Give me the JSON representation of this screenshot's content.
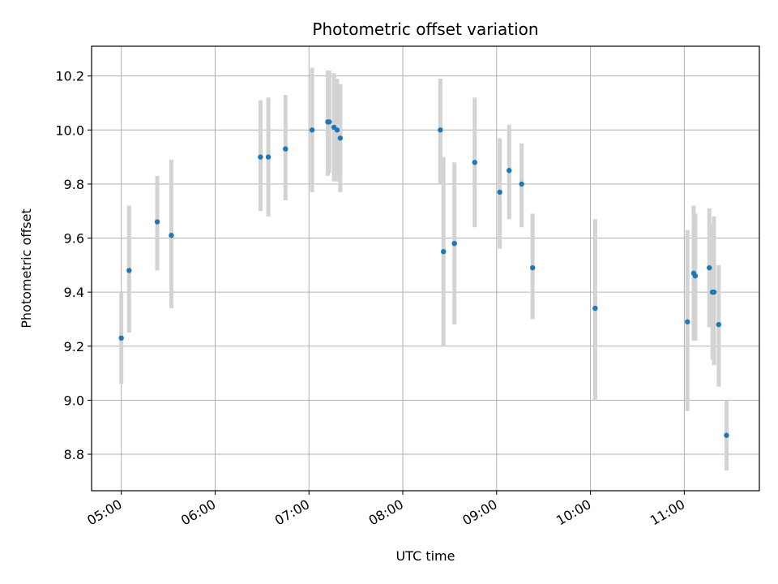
{
  "chart_data": {
    "type": "scatter",
    "title": "Photometric offset variation",
    "xlabel": "UTC time",
    "ylabel": "Photometric offset",
    "x_ticks": [
      "05:00",
      "06:00",
      "07:00",
      "08:00",
      "09:00",
      "10:00",
      "11:00"
    ],
    "y_ticks": [
      "8.8",
      "9.0",
      "9.2",
      "9.4",
      "9.6",
      "9.8",
      "10.0",
      "10.2"
    ],
    "xlim": [
      "04:41",
      "11:48"
    ],
    "ylim": [
      8.665,
      10.31
    ],
    "grid": true,
    "colors": {
      "point": "#1f77b4",
      "errorbar": "#d3d3d3",
      "grid": "#b0b0b0"
    },
    "series": [
      {
        "points": [
          {
            "x": "05:00",
            "y": 9.23,
            "ylow": 9.06,
            "yhigh": 9.4
          },
          {
            "x": "05:05",
            "y": 9.48,
            "ylow": 9.25,
            "yhigh": 9.72
          },
          {
            "x": "05:23",
            "y": 9.66,
            "ylow": 9.48,
            "yhigh": 9.83
          },
          {
            "x": "05:32",
            "y": 9.61,
            "ylow": 9.34,
            "yhigh": 9.89
          },
          {
            "x": "06:29",
            "y": 9.9,
            "ylow": 9.7,
            "yhigh": 10.11
          },
          {
            "x": "06:34",
            "y": 9.9,
            "ylow": 9.68,
            "yhigh": 10.12
          },
          {
            "x": "06:45",
            "y": 9.93,
            "ylow": 9.74,
            "yhigh": 10.13
          },
          {
            "x": "07:02",
            "y": 10.0,
            "ylow": 9.77,
            "yhigh": 10.23
          },
          {
            "x": "07:12",
            "y": 10.03,
            "ylow": 9.83,
            "yhigh": 10.22
          },
          {
            "x": "07:13",
            "y": 10.03,
            "ylow": 9.84,
            "yhigh": 10.22
          },
          {
            "x": "07:16",
            "y": 10.01,
            "ylow": 9.81,
            "yhigh": 10.21
          },
          {
            "x": "07:18",
            "y": 10.0,
            "ylow": 9.81,
            "yhigh": 10.19
          },
          {
            "x": "07:20",
            "y": 9.97,
            "ylow": 9.77,
            "yhigh": 10.17
          },
          {
            "x": "08:24",
            "y": 10.0,
            "ylow": 9.8,
            "yhigh": 10.19
          },
          {
            "x": "08:26",
            "y": 9.55,
            "ylow": 9.2,
            "yhigh": 9.9
          },
          {
            "x": "08:33",
            "y": 9.58,
            "ylow": 9.28,
            "yhigh": 9.88
          },
          {
            "x": "08:46",
            "y": 9.88,
            "ylow": 9.64,
            "yhigh": 10.12
          },
          {
            "x": "09:02",
            "y": 9.77,
            "ylow": 9.56,
            "yhigh": 9.97
          },
          {
            "x": "09:08",
            "y": 9.85,
            "ylow": 9.67,
            "yhigh": 10.02
          },
          {
            "x": "09:16",
            "y": 9.8,
            "ylow": 9.64,
            "yhigh": 9.95
          },
          {
            "x": "09:23",
            "y": 9.49,
            "ylow": 9.3,
            "yhigh": 9.69
          },
          {
            "x": "10:03",
            "y": 9.34,
            "ylow": 9.0,
            "yhigh": 9.67
          },
          {
            "x": "11:02",
            "y": 9.29,
            "ylow": 8.96,
            "yhigh": 9.63
          },
          {
            "x": "11:06",
            "y": 9.47,
            "ylow": 9.22,
            "yhigh": 9.72
          },
          {
            "x": "11:07",
            "y": 9.46,
            "ylow": 9.22,
            "yhigh": 9.69
          },
          {
            "x": "11:16",
            "y": 9.49,
            "ylow": 9.27,
            "yhigh": 9.71
          },
          {
            "x": "11:18",
            "y": 9.4,
            "ylow": 9.15,
            "yhigh": 9.65
          },
          {
            "x": "11:19",
            "y": 9.4,
            "ylow": 9.13,
            "yhigh": 9.68
          },
          {
            "x": "11:22",
            "y": 9.28,
            "ylow": 9.05,
            "yhigh": 9.5
          },
          {
            "x": "11:27",
            "y": 8.87,
            "ylow": 8.74,
            "yhigh": 9.0
          }
        ]
      }
    ]
  }
}
